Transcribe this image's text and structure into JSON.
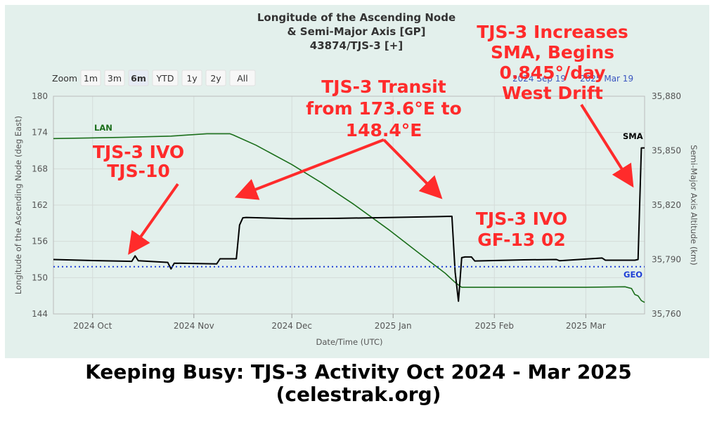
{
  "chart_data": {
    "type": "line",
    "title": [
      "Longitude of the Ascending Node",
      "& Semi-Major Axis [GP]",
      "43874/TJS-3 [+]"
    ],
    "xlabel": "Date/Time (UTC)",
    "x_range": [
      "2024-09-19",
      "2025-03-19"
    ],
    "x_ticks": [
      {
        "date": "2024-10-01",
        "label": "2024 Oct"
      },
      {
        "date": "2024-11-01",
        "label": "2024 Nov"
      },
      {
        "date": "2024-12-01",
        "label": "2024 Dec"
      },
      {
        "date": "2025-01-01",
        "label": "2025 Jan"
      },
      {
        "date": "2025-02-01",
        "label": "2025 Feb"
      },
      {
        "date": "2025-03-01",
        "label": "2025 Mar"
      }
    ],
    "y_left": {
      "label": "Longitude of the Ascending Node (deg East)",
      "range": [
        144,
        180
      ],
      "ticks": [
        "144",
        "150",
        "156",
        "162",
        "168",
        "174",
        "180"
      ]
    },
    "y_right": {
      "label": "Semi-Major Axis Altitude (km)",
      "range": [
        35760,
        35880
      ],
      "ticks": [
        "35,760",
        "35,790",
        "35,820",
        "35,850",
        "35,880"
      ]
    },
    "grid": true,
    "zoom": {
      "label": "Zoom",
      "buttons": [
        "1m",
        "3m",
        "6m",
        "YTD",
        "1y",
        "2y",
        "All"
      ],
      "selected": "6m"
    },
    "range_labels": [
      "2024 Sep 19",
      "2025 Mar 19"
    ],
    "series": [
      {
        "name": "LAN",
        "axis": "left",
        "color": "#1a6e1a",
        "points": [
          [
            "2024-09-19",
            173.0
          ],
          [
            "2024-10-10",
            173.2
          ],
          [
            "2024-10-25",
            173.4
          ],
          [
            "2024-11-05",
            173.8
          ],
          [
            "2024-11-12",
            173.8
          ],
          [
            "2024-11-13",
            173.6
          ],
          [
            "2024-11-20",
            171.9
          ],
          [
            "2024-12-01",
            168.7
          ],
          [
            "2024-12-10",
            165.7
          ],
          [
            "2024-12-20",
            162.1
          ],
          [
            "2024-12-31",
            157.8
          ],
          [
            "2025-01-10",
            153.6
          ],
          [
            "2025-01-17",
            150.7
          ],
          [
            "2025-01-20",
            149.2
          ],
          [
            "2025-01-22",
            148.4
          ],
          [
            "2025-02-01",
            148.4
          ],
          [
            "2025-03-01",
            148.4
          ],
          [
            "2025-03-13",
            148.5
          ],
          [
            "2025-03-15",
            148.2
          ],
          [
            "2025-03-16",
            147.2
          ],
          [
            "2025-03-17",
            147.0
          ],
          [
            "2025-03-18",
            146.2
          ],
          [
            "2025-03-19",
            145.9
          ]
        ]
      },
      {
        "name": "SMA",
        "axis": "right",
        "color": "#000000",
        "points": [
          [
            "2024-09-19",
            35790.0
          ],
          [
            "2024-10-01",
            35789.4
          ],
          [
            "2024-10-13",
            35789.0
          ],
          [
            "2024-10-14",
            35792.0
          ],
          [
            "2024-10-15",
            35789.3
          ],
          [
            "2024-10-24",
            35788.4
          ],
          [
            "2024-10-25",
            35784.8
          ],
          [
            "2024-10-26",
            35788.0
          ],
          [
            "2024-11-08",
            35787.6
          ],
          [
            "2024-11-09",
            35790.4
          ],
          [
            "2024-11-14",
            35790.4
          ],
          [
            "2024-11-15",
            35809.0
          ],
          [
            "2024-11-16",
            35813.0
          ],
          [
            "2024-11-17",
            35813.2
          ],
          [
            "2024-12-01",
            35812.5
          ],
          [
            "2024-12-15",
            35812.7
          ],
          [
            "2025-01-01",
            35813.2
          ],
          [
            "2025-01-14",
            35813.6
          ],
          [
            "2025-01-19",
            35813.8
          ],
          [
            "2025-01-20",
            35783.0
          ],
          [
            "2025-01-21",
            35767.0
          ],
          [
            "2025-01-22",
            35791.0
          ],
          [
            "2025-01-23",
            35791.4
          ],
          [
            "2025-01-25",
            35791.4
          ],
          [
            "2025-01-26",
            35789.2
          ],
          [
            "2025-02-10",
            35789.8
          ],
          [
            "2025-02-20",
            35790.0
          ],
          [
            "2025-02-21",
            35789.3
          ],
          [
            "2025-03-06",
            35790.8
          ],
          [
            "2025-03-07",
            35789.6
          ],
          [
            "2025-03-16",
            35789.6
          ],
          [
            "2025-03-17",
            35790.0
          ],
          [
            "2025-03-18",
            35851.5
          ],
          [
            "2025-03-19",
            35851.5
          ]
        ]
      },
      {
        "name": "GEO",
        "axis": "right",
        "color": "#1f3fd6",
        "style": "dotted",
        "points": [
          [
            "2024-09-19",
            35786
          ],
          [
            "2025-03-19",
            35786
          ]
        ]
      }
    ],
    "annotations": [
      {
        "text": [
          "TJS-3 IVO",
          "TJS-10"
        ]
      },
      {
        "text": [
          "TJS-3 Transit",
          "from 173.6°E to",
          "148.4°E"
        ]
      },
      {
        "text": [
          "TJS-3 Increases",
          "SMA, Begins",
          "0.845°/day",
          "West Drift"
        ]
      },
      {
        "text": [
          "TJS-3 IVO",
          "GF-13 02"
        ]
      }
    ]
  },
  "caption": {
    "line1": "Keeping Busy:  TJS-3 Activity Oct 2024 - Mar 2025",
    "line2": "(celestrak.org)"
  }
}
